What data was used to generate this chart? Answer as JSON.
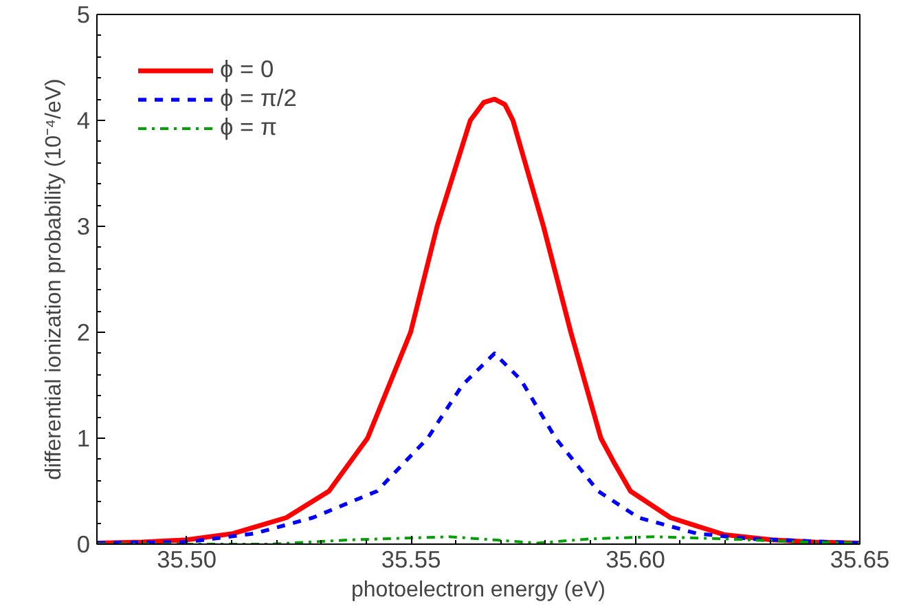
{
  "chart_data": {
    "type": "line",
    "xlabel": "photoelectron energy (eV)",
    "ylabel": "differential ionization probability (10⁻⁴/eV)",
    "xlim": [
      35.48,
      35.65
    ],
    "ylim": [
      0,
      5
    ],
    "xticks": [
      {
        "value": 35.5,
        "label": "35.50"
      },
      {
        "value": 35.55,
        "label": "35.55"
      },
      {
        "value": 35.6,
        "label": "35.60"
      },
      {
        "value": 35.65,
        "label": "35.65"
      }
    ],
    "yticks": [
      0,
      1,
      2,
      3,
      4,
      5
    ],
    "grid": false,
    "legend": "top left",
    "marker": "none",
    "series": [
      {
        "name": "ϕ = 0",
        "color": "#ff0000",
        "line_style": "solid",
        "x": [
          35.48,
          35.4901,
          35.5,
          35.5103,
          35.5222,
          35.5317,
          35.5403,
          35.5499,
          35.5558,
          35.5632,
          35.5662,
          35.5686,
          35.5709,
          35.5727,
          35.5795,
          35.5856,
          35.5923,
          35.5951,
          35.5989,
          35.6078,
          35.6197,
          35.6304,
          35.6399,
          35.65
        ],
        "values": [
          0.01,
          0.02,
          0.04,
          0.1,
          0.25,
          0.5,
          1,
          2,
          3,
          4,
          4.17,
          4.2,
          4.15,
          4.0,
          3,
          2,
          1,
          0.78,
          0.5,
          0.25,
          0.09,
          0.04,
          0.02,
          0.01
        ]
      },
      {
        "name": "ϕ = π/2",
        "color": "#0000ff",
        "line_style": "dashed",
        "x": [
          35.48,
          35.5,
          35.5151,
          35.5281,
          35.5424,
          35.5537,
          35.5614,
          35.5686,
          35.5745,
          35.5822,
          35.5917,
          35.6007,
          35.6137,
          35.6256,
          35.65
        ],
        "values": [
          0.01,
          0.02,
          0.1,
          0.25,
          0.5,
          1,
          1.5,
          1.8,
          1.55,
          1.0,
          0.5,
          0.25,
          0.1,
          0.05,
          0.01
        ]
      },
      {
        "name": "ϕ = π",
        "color": "#00a000",
        "line_style": "dashdot",
        "x": [
          35.48,
          35.5186,
          35.5365,
          35.5585,
          35.5686,
          35.5781,
          35.59,
          35.6042,
          35.6197,
          35.6375,
          35.65
        ],
        "values": [
          0,
          0.0,
          0.04,
          0.07,
          0.04,
          0.01,
          0.05,
          0.07,
          0.05,
          0.02,
          0.01
        ]
      }
    ]
  }
}
